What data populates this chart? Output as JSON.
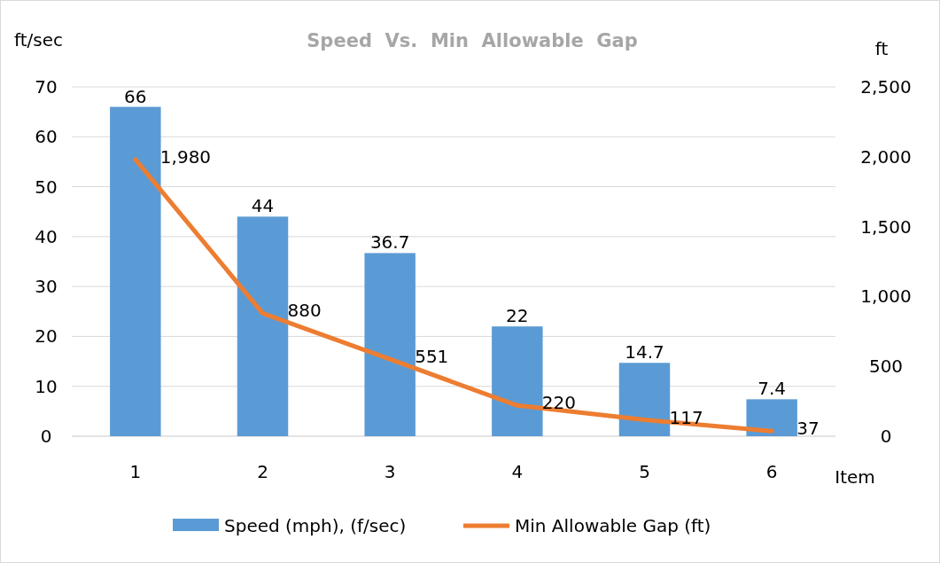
{
  "chart_data": {
    "type": "bar",
    "title": "Speed  Vs.  Min  Allowable  Gap",
    "xlabel": "Item",
    "ylabel": "ft/sec",
    "y2label": "ft",
    "categories": [
      "1",
      "2",
      "3",
      "4",
      "5",
      "6"
    ],
    "series": [
      {
        "name": "Speed (mph), (f/sec)",
        "color": "#5b9bd5",
        "values": [
          66,
          44,
          36.7,
          22,
          14.7,
          7.4
        ],
        "value_labels": [
          "66",
          "44",
          "36.7",
          "22",
          "14.7",
          "7.4"
        ]
      },
      {
        "name": "Min Allowable Gap (ft)",
        "type": "line",
        "axis": "y2",
        "color": "#ed7d31",
        "values": [
          1980,
          880,
          551,
          220,
          117,
          37
        ],
        "value_labels": [
          "1,980",
          "880",
          "551",
          "220",
          "117",
          "37"
        ]
      }
    ],
    "ylim": [
      0,
      70
    ],
    "yticks": [
      0,
      10,
      20,
      30,
      40,
      50,
      60,
      70
    ],
    "y2lim": [
      0,
      2500
    ],
    "y2ticks": [
      0,
      {
        "value": 500,
        "label": "500"
      },
      {
        "value": 1000,
        "label": "1,000"
      },
      {
        "value": 1500,
        "label": "1,500"
      },
      {
        "value": 2000,
        "label": "2,000"
      },
      {
        "value": 2500,
        "label": "2,500"
      }
    ],
    "grid": "y",
    "legend": "bottom",
    "marker": "none",
    "line_style": "solid"
  }
}
